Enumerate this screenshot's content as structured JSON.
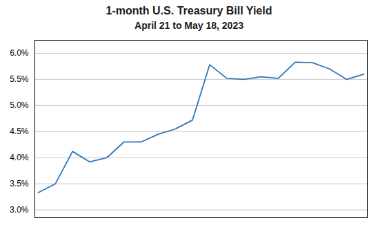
{
  "chart_data": {
    "type": "line",
    "title": "1-month U.S. Treasury Bill Yield",
    "subtitle": "April 21 to May 18, 2023",
    "x": [
      0,
      1,
      2,
      3,
      4,
      5,
      6,
      7,
      8,
      9,
      10,
      11,
      12,
      13,
      14,
      15,
      16,
      17,
      18,
      19
    ],
    "values": [
      3.33,
      3.5,
      4.12,
      3.92,
      4.0,
      4.3,
      4.3,
      4.45,
      4.55,
      4.72,
      5.78,
      5.52,
      5.5,
      5.55,
      5.52,
      5.83,
      5.82,
      5.7,
      5.5,
      5.6
    ],
    "color": "#2E75B6",
    "xlim": [
      -0.2,
      19.2
    ],
    "ylim": [
      2.85,
      6.25
    ],
    "yticks": [
      {
        "value": 3.0,
        "label": "3.0%"
      },
      {
        "value": 3.5,
        "label": "3.5%"
      },
      {
        "value": 4.0,
        "label": "4.0%"
      },
      {
        "value": 4.5,
        "label": "4.5%"
      },
      {
        "value": 5.0,
        "label": "5.0%"
      },
      {
        "value": 5.5,
        "label": "5.5%"
      },
      {
        "value": 6.0,
        "label": "6.0%"
      }
    ],
    "grid": true,
    "tick_labels": "y"
  }
}
